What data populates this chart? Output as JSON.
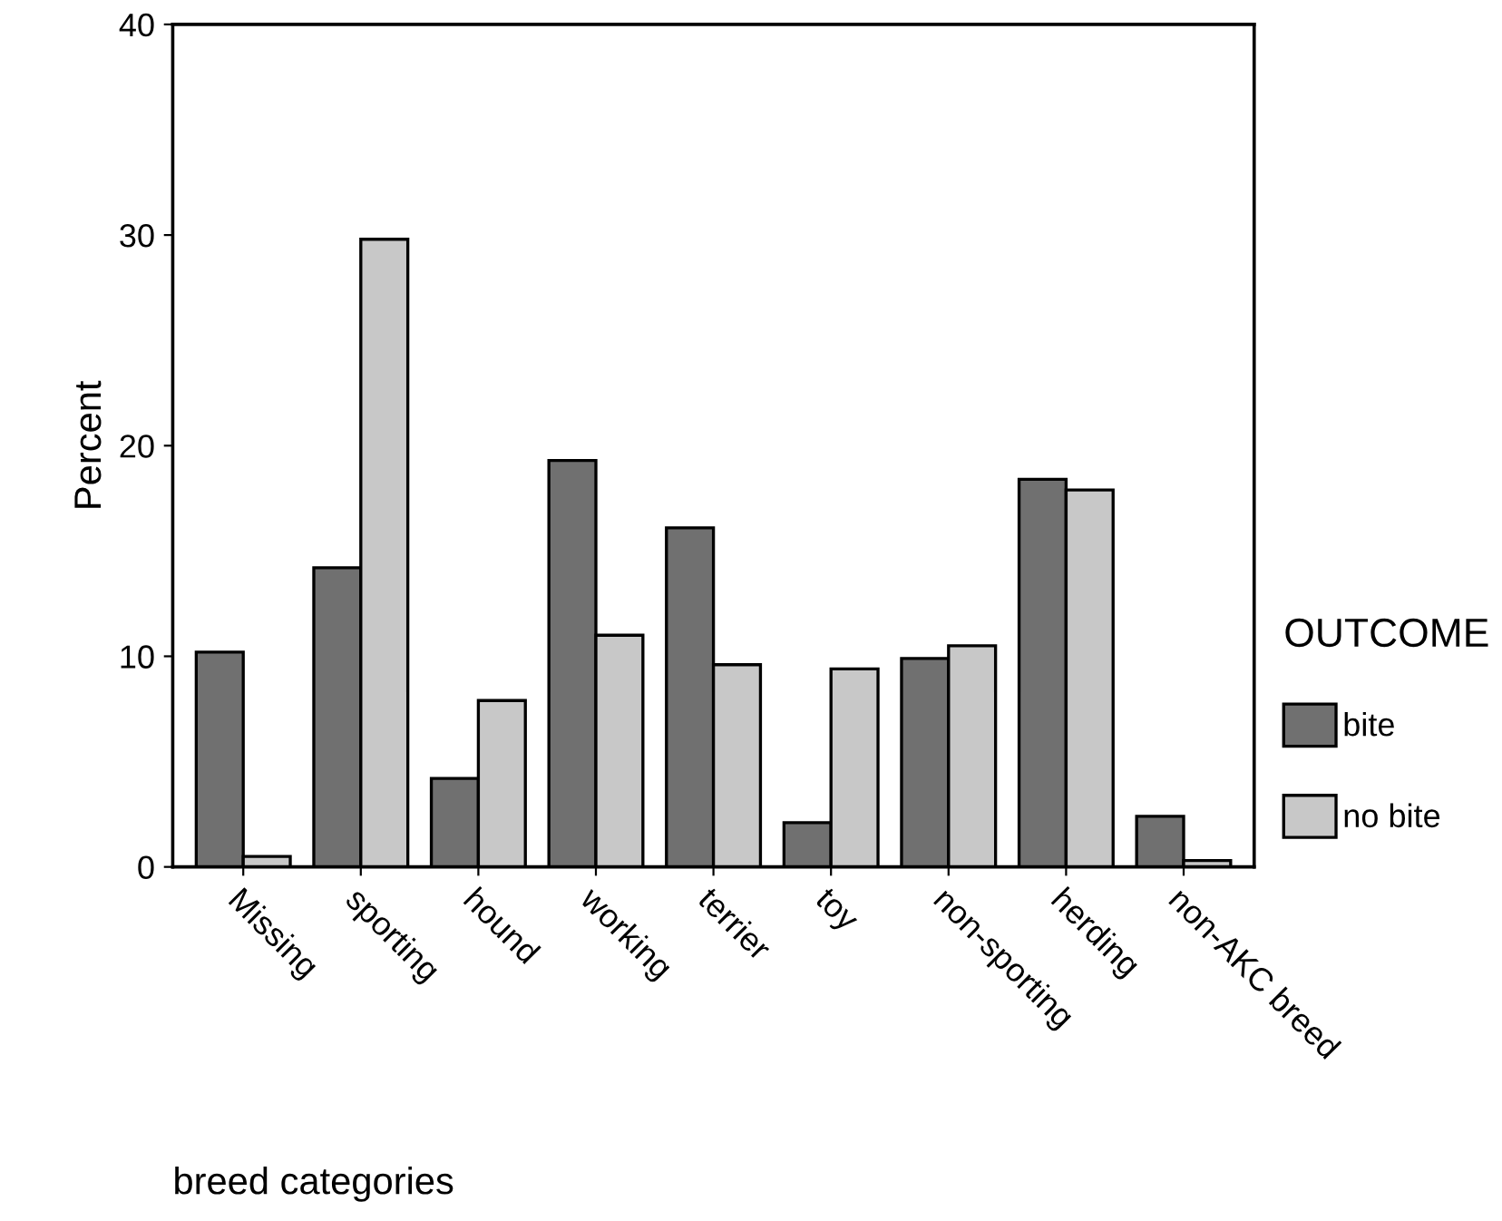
{
  "chart_data": {
    "type": "bar",
    "xlabel": "breed categories",
    "ylabel": "Percent",
    "legend_title": "OUTCOME",
    "categories": [
      "Missing",
      "sporting",
      "hound",
      "working",
      "terrier",
      "toy",
      "non-sporting",
      "herding",
      "non-AKC breed"
    ],
    "series": [
      {
        "name": "bite",
        "color": "#707070",
        "values": [
          10.2,
          14.2,
          4.2,
          19.3,
          16.1,
          2.1,
          9.9,
          18.4,
          2.4
        ]
      },
      {
        "name": "no bite",
        "color": "#c8c8c8",
        "values": [
          0.5,
          29.8,
          7.9,
          11.0,
          9.6,
          9.4,
          10.5,
          17.9,
          0.3
        ]
      }
    ],
    "ylim": [
      0,
      40
    ],
    "yticks": [
      0,
      10,
      20,
      30,
      40
    ],
    "grid": false,
    "legend": "right"
  }
}
